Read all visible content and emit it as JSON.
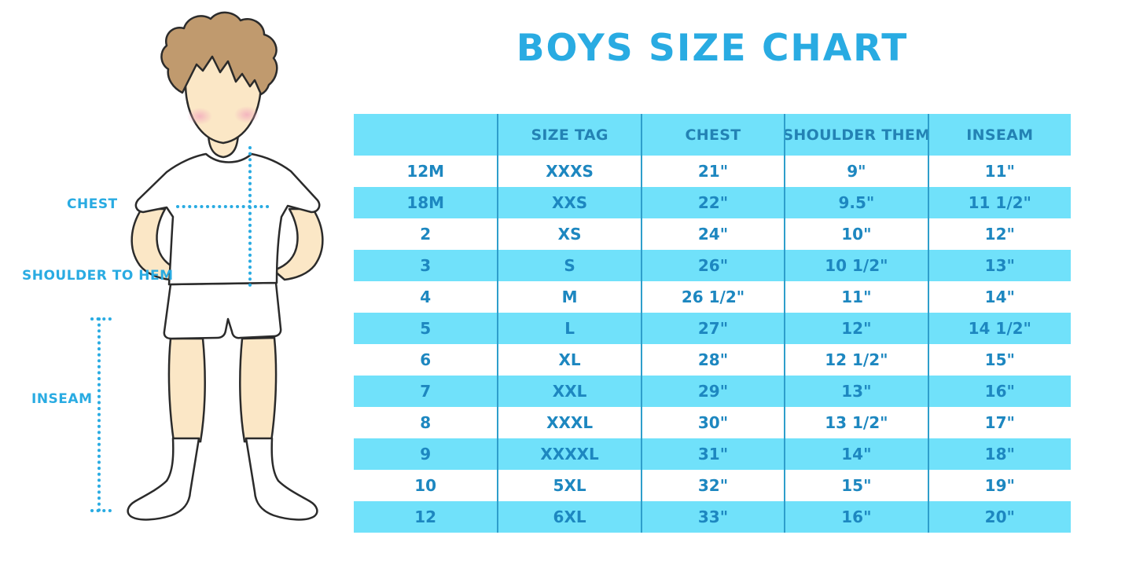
{
  "title": "BOYS SIZE CHART",
  "diagram": {
    "chest_label": "CHEST",
    "shoulder_to_hem_label": "SHOULDER TO HEM",
    "inseam_label": "INSEAM"
  },
  "chart_data": {
    "type": "table",
    "columns": [
      "",
      "SIZE TAG",
      "CHEST",
      "SHOULDER THEM",
      "INSEAM"
    ],
    "rows": [
      [
        "12M",
        "XXXS",
        "21\"",
        "9\"",
        "11\""
      ],
      [
        "18M",
        "XXS",
        "22\"",
        "9.5\"",
        "11 1/2\""
      ],
      [
        "2",
        "XS",
        "24\"",
        "10\"",
        "12\""
      ],
      [
        "3",
        "S",
        "26\"",
        "10 1/2\"",
        "13\""
      ],
      [
        "4",
        "M",
        "26 1/2\"",
        "11\"",
        "14\""
      ],
      [
        "5",
        "L",
        "27\"",
        "12\"",
        "14 1/2\""
      ],
      [
        "6",
        "XL",
        "28\"",
        "12 1/2\"",
        "15\""
      ],
      [
        "7",
        "XXL",
        "29\"",
        "13\"",
        "16\""
      ],
      [
        "8",
        "XXXL",
        "30\"",
        "13 1/2\"",
        "17\""
      ],
      [
        "9",
        "XXXXL",
        "31\"",
        "14\"",
        "18\""
      ],
      [
        "10",
        "5XL",
        "32\"",
        "15\"",
        "19\""
      ],
      [
        "12",
        "6XL",
        "33\"",
        "16\"",
        "20\""
      ]
    ]
  },
  "colors": {
    "title_blue": "#29abe2",
    "label_blue": "#29abe2",
    "dotted_line": "#29abe2",
    "header_bg": "#70e1fa",
    "row_alt_bg": "#70e1fa",
    "divider": "#2e9ecb",
    "header_text": "#2382b4",
    "cell_text": "#1d87c0",
    "hair": "#c09a6e",
    "skin": "#fbe7c6",
    "cheek": "#f2a9bd",
    "outline": "#2b2b2b"
  }
}
